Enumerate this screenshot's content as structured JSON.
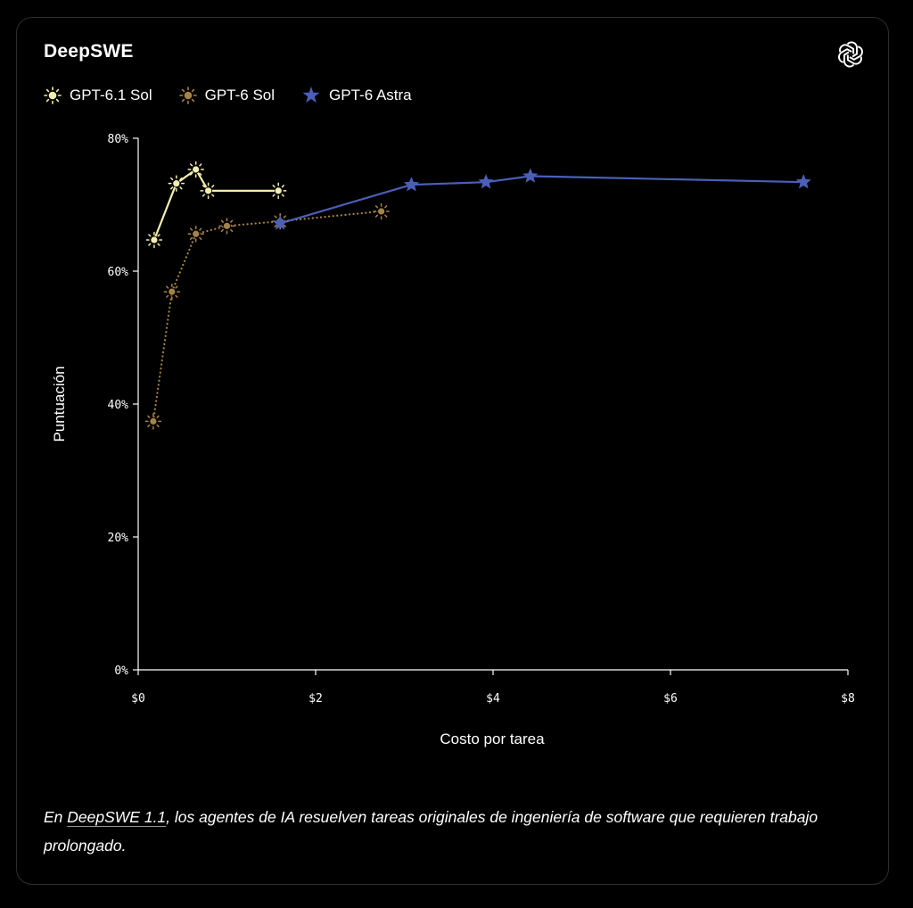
{
  "card": {
    "title": "DeepSWE",
    "logo_icon": "openai-logo-icon"
  },
  "legend": [
    {
      "label": "GPT-6.1 Sol",
      "icon": "sun-icon",
      "color": "#f3edb0"
    },
    {
      "label": "GPT-6 Sol",
      "icon": "sun-icon",
      "color": "#a58249"
    },
    {
      "label": "GPT-6 Astra",
      "icon": "star-icon",
      "color": "#4b5fb8"
    }
  ],
  "caption": {
    "prefix": "En ",
    "link_text": "DeepSWE 1.1",
    "suffix": ", los agentes de IA resuelven tareas originales de ingeniería de software que requieren trabajo prolongado."
  },
  "chart_data": {
    "type": "line",
    "title": "DeepSWE",
    "xlabel": "Costo por tarea",
    "ylabel": "Puntuación",
    "xlim": [
      0,
      8
    ],
    "ylim": [
      0,
      80
    ],
    "x_ticks": [
      0,
      2,
      4,
      6,
      8
    ],
    "x_tick_labels": [
      "$0",
      "$2",
      "$4",
      "$6",
      "$8"
    ],
    "y_ticks": [
      0,
      20,
      40,
      60,
      80
    ],
    "y_tick_labels": [
      "0%",
      "20%",
      "40%",
      "60%",
      "80%"
    ],
    "grid": false,
    "legend_position": "top-left",
    "series": [
      {
        "name": "GPT-6.1 Sol",
        "color": "#f3edb0",
        "line_style": "solid",
        "marker": "sun",
        "x": [
          0.18,
          0.43,
          0.65,
          0.79,
          1.58
        ],
        "y": [
          64.7,
          73.2,
          75.3,
          72.1,
          72.1
        ]
      },
      {
        "name": "GPT-6 Sol",
        "color": "#a58249",
        "line_style": "dotted",
        "marker": "sun",
        "x": [
          0.17,
          0.38,
          0.65,
          1.0,
          1.6,
          2.74
        ],
        "y": [
          37.4,
          56.9,
          65.6,
          66.8,
          67.5,
          69.0
        ]
      },
      {
        "name": "GPT-6 Astra",
        "color": "#4b5fb8",
        "line_style": "solid",
        "marker": "star",
        "x": [
          1.6,
          3.08,
          3.92,
          4.42,
          7.5
        ],
        "y": [
          67.2,
          73.0,
          73.4,
          74.3,
          73.4
        ]
      }
    ]
  }
}
